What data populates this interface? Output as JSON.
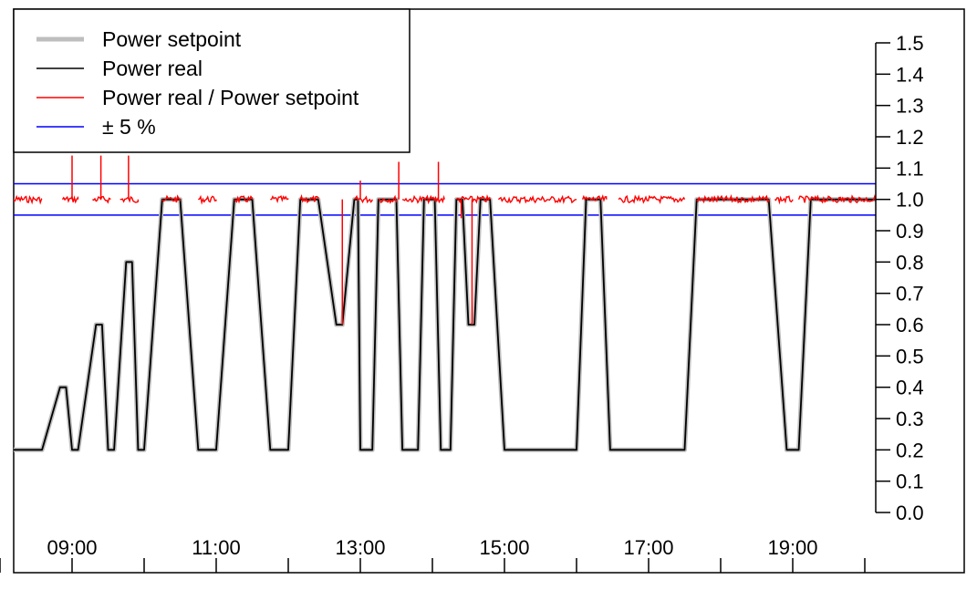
{
  "chart_data": {
    "type": "line",
    "title": "",
    "xlabel": "",
    "ylabel": "",
    "ylim": [
      0.0,
      1.5
    ],
    "y_axis_side": "right",
    "x_ticks": [
      "09:00",
      "11:00",
      "13:00",
      "15:00",
      "17:00",
      "19:00"
    ],
    "x_minor_ticks": [
      "08:00",
      "10:00",
      "12:00",
      "14:00",
      "16:00",
      "18:00",
      "20:00"
    ],
    "y_ticks": [
      "0.0",
      "0.1",
      "0.2",
      "0.3",
      "0.4",
      "0.5",
      "0.6",
      "0.7",
      "0.8",
      "0.9",
      "1.0",
      "1.1",
      "1.2",
      "1.3",
      "1.4",
      "1.5"
    ],
    "legend_position": "top-left",
    "legend": [
      {
        "label": "Power setpoint",
        "color": "#bebebe"
      },
      {
        "label": "Power real",
        "color": "#000000"
      },
      {
        "label": "Power real / Power setpoint",
        "color": "#ff0000"
      },
      {
        "label": "± 5 %",
        "color": "#0000ff"
      }
    ],
    "reference_lines": [
      0.95,
      1.05
    ],
    "series": [
      {
        "name": "Power setpoint",
        "color": "#bebebe",
        "points": [
          [
            "08:00",
            0.2
          ],
          [
            "08:35",
            0.2
          ],
          [
            "08:50",
            0.4
          ],
          [
            "08:55",
            0.4
          ],
          [
            "09:00",
            0.2
          ],
          [
            "09:05",
            0.2
          ],
          [
            "09:20",
            0.6
          ],
          [
            "09:25",
            0.6
          ],
          [
            "09:30",
            0.2
          ],
          [
            "09:35",
            0.2
          ],
          [
            "09:45",
            0.8
          ],
          [
            "09:50",
            0.8
          ],
          [
            "09:55",
            0.2
          ],
          [
            "10:00",
            0.2
          ],
          [
            "10:15",
            1.0
          ],
          [
            "10:30",
            1.0
          ],
          [
            "10:45",
            0.2
          ],
          [
            "11:00",
            0.2
          ],
          [
            "11:15",
            1.0
          ],
          [
            "11:30",
            1.0
          ],
          [
            "11:45",
            0.2
          ],
          [
            "12:00",
            0.2
          ],
          [
            "12:10",
            1.0
          ],
          [
            "12:25",
            1.0
          ],
          [
            "12:40",
            0.6
          ],
          [
            "12:45",
            0.6
          ],
          [
            "12:55",
            1.0
          ],
          [
            "12:58",
            1.0
          ],
          [
            "13:00",
            0.2
          ],
          [
            "13:10",
            0.2
          ],
          [
            "13:15",
            1.0
          ],
          [
            "13:30",
            1.0
          ],
          [
            "13:35",
            0.2
          ],
          [
            "13:48",
            0.2
          ],
          [
            "13:53",
            1.0
          ],
          [
            "14:02",
            1.0
          ],
          [
            "14:07",
            0.2
          ],
          [
            "14:15",
            0.2
          ],
          [
            "14:20",
            1.0
          ],
          [
            "14:25",
            1.0
          ],
          [
            "14:30",
            0.6
          ],
          [
            "14:35",
            0.6
          ],
          [
            "14:40",
            1.0
          ],
          [
            "14:48",
            1.0
          ],
          [
            "15:00",
            0.2
          ],
          [
            "16:00",
            0.2
          ],
          [
            "16:08",
            1.0
          ],
          [
            "16:20",
            1.0
          ],
          [
            "16:28",
            0.2
          ],
          [
            "17:30",
            0.2
          ],
          [
            "17:40",
            1.0
          ],
          [
            "18:40",
            1.0
          ],
          [
            "18:55",
            0.2
          ],
          [
            "19:05",
            0.2
          ],
          [
            "19:15",
            1.0
          ],
          [
            "20:15",
            1.0
          ]
        ]
      },
      {
        "name": "Power real",
        "color": "#000000",
        "points": [
          [
            "08:00",
            0.2
          ],
          [
            "08:35",
            0.2
          ],
          [
            "08:50",
            0.4
          ],
          [
            "08:55",
            0.4
          ],
          [
            "09:00",
            0.2
          ],
          [
            "09:05",
            0.2
          ],
          [
            "09:20",
            0.6
          ],
          [
            "09:25",
            0.6
          ],
          [
            "09:30",
            0.2
          ],
          [
            "09:35",
            0.2
          ],
          [
            "09:45",
            0.8
          ],
          [
            "09:50",
            0.8
          ],
          [
            "09:55",
            0.2
          ],
          [
            "10:00",
            0.2
          ],
          [
            "10:15",
            1.0
          ],
          [
            "10:30",
            1.0
          ],
          [
            "10:45",
            0.2
          ],
          [
            "11:00",
            0.2
          ],
          [
            "11:15",
            1.0
          ],
          [
            "11:30",
            1.0
          ],
          [
            "11:45",
            0.2
          ],
          [
            "12:00",
            0.2
          ],
          [
            "12:10",
            1.0
          ],
          [
            "12:25",
            1.0
          ],
          [
            "12:40",
            0.6
          ],
          [
            "12:45",
            0.6
          ],
          [
            "12:55",
            1.0
          ],
          [
            "12:58",
            1.0
          ],
          [
            "13:00",
            0.2
          ],
          [
            "13:10",
            0.2
          ],
          [
            "13:15",
            1.0
          ],
          [
            "13:30",
            1.0
          ],
          [
            "13:35",
            0.2
          ],
          [
            "13:48",
            0.2
          ],
          [
            "13:53",
            1.0
          ],
          [
            "14:02",
            1.0
          ],
          [
            "14:07",
            0.2
          ],
          [
            "14:15",
            0.2
          ],
          [
            "14:20",
            1.0
          ],
          [
            "14:25",
            1.0
          ],
          [
            "14:30",
            0.6
          ],
          [
            "14:35",
            0.6
          ],
          [
            "14:40",
            1.0
          ],
          [
            "14:48",
            1.0
          ],
          [
            "15:00",
            0.2
          ],
          [
            "16:00",
            0.2
          ],
          [
            "16:08",
            1.0
          ],
          [
            "16:20",
            1.0
          ],
          [
            "16:28",
            0.2
          ],
          [
            "17:30",
            0.2
          ],
          [
            "17:40",
            1.0
          ],
          [
            "18:40",
            1.0
          ],
          [
            "18:55",
            0.2
          ],
          [
            "19:05",
            0.2
          ],
          [
            "19:15",
            1.0
          ],
          [
            "20:15",
            1.0
          ]
        ]
      },
      {
        "name": "Power real / Power setpoint",
        "color": "#ff0000",
        "segments": [
          [
            [
              "08:00",
              1.0
            ],
            [
              "08:35",
              1.0
            ]
          ],
          [
            [
              "08:52",
              1.0
            ],
            [
              "09:05",
              1.0
            ]
          ],
          [
            [
              "09:17",
              1.0
            ],
            [
              "09:32",
              1.0
            ]
          ],
          [
            [
              "09:40",
              1.0
            ],
            [
              "09:55",
              1.0
            ]
          ],
          [
            [
              "10:15",
              1.0
            ],
            [
              "10:30",
              1.0
            ]
          ],
          [
            [
              "10:45",
              1.0
            ],
            [
              "11:00",
              1.0
            ]
          ],
          [
            [
              "11:15",
              1.0
            ],
            [
              "11:30",
              1.0
            ]
          ],
          [
            [
              "11:45",
              1.0
            ],
            [
              "12:00",
              1.0
            ]
          ],
          [
            [
              "12:10",
              1.0
            ],
            [
              "12:25",
              1.0
            ]
          ],
          [
            [
              "12:55",
              1.0
            ],
            [
              "13:10",
              1.0
            ]
          ],
          [
            [
              "13:15",
              1.0
            ],
            [
              "13:30",
              1.0
            ]
          ],
          [
            [
              "13:35",
              1.0
            ],
            [
              "14:10",
              1.0
            ]
          ],
          [
            [
              "14:20",
              1.0
            ],
            [
              "14:48",
              1.0
            ]
          ],
          [
            [
              "14:55",
              1.0
            ],
            [
              "16:00",
              1.0
            ]
          ],
          [
            [
              "16:05",
              1.0
            ],
            [
              "16:25",
              1.0
            ]
          ],
          [
            [
              "16:35",
              1.0
            ],
            [
              "17:30",
              1.0
            ]
          ],
          [
            [
              "17:40",
              1.0
            ],
            [
              "18:40",
              1.0
            ]
          ],
          [
            [
              "18:45",
              1.0
            ],
            [
              "19:00",
              1.0
            ]
          ],
          [
            [
              "19:05",
              1.0
            ],
            [
              "20:15",
              1.0
            ]
          ]
        ],
        "spikes": [
          [
            "09:00",
            1.14
          ],
          [
            "09:24",
            1.14
          ],
          [
            "09:47",
            1.14
          ],
          [
            "12:45",
            0.6
          ],
          [
            "13:00",
            1.06
          ],
          [
            "13:32",
            1.12
          ],
          [
            "14:05",
            1.12
          ],
          [
            "14:24",
            0.94
          ],
          [
            "14:33",
            0.6
          ]
        ]
      },
      {
        "name": "± 5 %",
        "color": "#0000ff",
        "values": [
          0.95,
          1.05
        ]
      }
    ]
  }
}
